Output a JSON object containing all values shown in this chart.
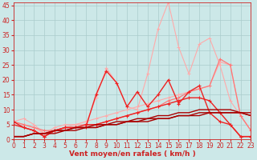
{
  "x": [
    0,
    1,
    2,
    3,
    4,
    5,
    6,
    7,
    8,
    9,
    10,
    11,
    12,
    13,
    14,
    15,
    16,
    17,
    18,
    19,
    20,
    21,
    22,
    23
  ],
  "series": [
    {
      "name": "lightest_pink_jagged",
      "color": "#ffaaaa",
      "lw": 0.8,
      "marker": "+",
      "ms": 3,
      "mew": 0.7,
      "values": [
        6,
        7,
        5,
        2,
        4,
        5,
        5,
        5,
        14,
        24,
        19,
        11,
        10,
        22,
        37,
        46,
        31,
        22,
        32,
        34,
        25,
        13,
        8,
        3
      ]
    },
    {
      "name": "light_pink_rising1",
      "color": "#ffaaaa",
      "lw": 0.8,
      "marker": "+",
      "ms": 3,
      "mew": 0.7,
      "values": [
        6,
        5,
        4,
        2,
        3,
        4,
        5,
        6,
        7,
        8,
        9,
        10,
        11,
        12,
        13,
        14,
        15,
        16,
        17,
        18,
        26,
        25,
        8,
        3
      ]
    },
    {
      "name": "medium_pink_rising",
      "color": "#ff7777",
      "lw": 0.9,
      "marker": "+",
      "ms": 3,
      "mew": 0.7,
      "values": [
        6,
        5,
        4,
        3,
        3,
        4,
        4,
        4,
        5,
        6,
        7,
        8,
        9,
        10,
        11,
        13,
        14,
        16,
        17,
        18,
        27,
        25,
        8,
        3
      ]
    },
    {
      "name": "red_jagged",
      "color": "#ee2222",
      "lw": 1.0,
      "marker": "+",
      "ms": 3,
      "mew": 0.8,
      "values": [
        6,
        4,
        3,
        1,
        3,
        4,
        4,
        4,
        15,
        23,
        19,
        11,
        16,
        11,
        15,
        20,
        12,
        16,
        18,
        9,
        6,
        5,
        1,
        1
      ]
    },
    {
      "name": "red_rising",
      "color": "#ee2222",
      "lw": 1.0,
      "marker": "+",
      "ms": 3,
      "mew": 0.8,
      "values": [
        5,
        4,
        3,
        1,
        3,
        4,
        4,
        5,
        5,
        6,
        7,
        8,
        9,
        10,
        11,
        12,
        13,
        14,
        14,
        13,
        9,
        5,
        1,
        1
      ]
    },
    {
      "name": "dark_red_linear1",
      "color": "#aa0000",
      "lw": 1.0,
      "marker": null,
      "ms": 0,
      "mew": 0,
      "values": [
        1,
        1,
        2,
        2,
        2,
        3,
        3,
        4,
        4,
        5,
        5,
        6,
        6,
        6,
        7,
        7,
        8,
        8,
        8,
        9,
        9,
        9,
        9,
        9
      ]
    },
    {
      "name": "dark_red_linear2",
      "color": "#aa0000",
      "lw": 1.0,
      "marker": null,
      "ms": 0,
      "mew": 0,
      "values": [
        1,
        1,
        2,
        2,
        3,
        3,
        4,
        4,
        4,
        5,
        5,
        6,
        6,
        7,
        7,
        7,
        8,
        8,
        9,
        9,
        9,
        9,
        9,
        8
      ]
    },
    {
      "name": "dark_red_linear3",
      "color": "#aa0000",
      "lw": 1.0,
      "marker": null,
      "ms": 0,
      "mew": 0,
      "values": [
        1,
        1,
        2,
        2,
        3,
        3,
        4,
        4,
        5,
        5,
        6,
        6,
        7,
        7,
        8,
        8,
        9,
        9,
        10,
        10,
        10,
        10,
        9,
        8
      ]
    }
  ],
  "xlabel": "Vent moyen/en rafales ( km/h )",
  "xlim": [
    0,
    23
  ],
  "ylim": [
    0,
    46
  ],
  "yticks": [
    0,
    5,
    10,
    15,
    20,
    25,
    30,
    35,
    40,
    45
  ],
  "xticks": [
    0,
    1,
    2,
    3,
    4,
    5,
    6,
    7,
    8,
    9,
    10,
    11,
    12,
    13,
    14,
    15,
    16,
    17,
    18,
    19,
    20,
    21,
    22,
    23
  ],
  "bg_color": "#cce8e8",
  "grid_color": "#aacccc",
  "axis_color": "#cc2222",
  "tick_color": "#cc2222",
  "xlabel_color": "#cc2222",
  "xlabel_fontsize": 6.5,
  "tick_fontsize": 5.5
}
